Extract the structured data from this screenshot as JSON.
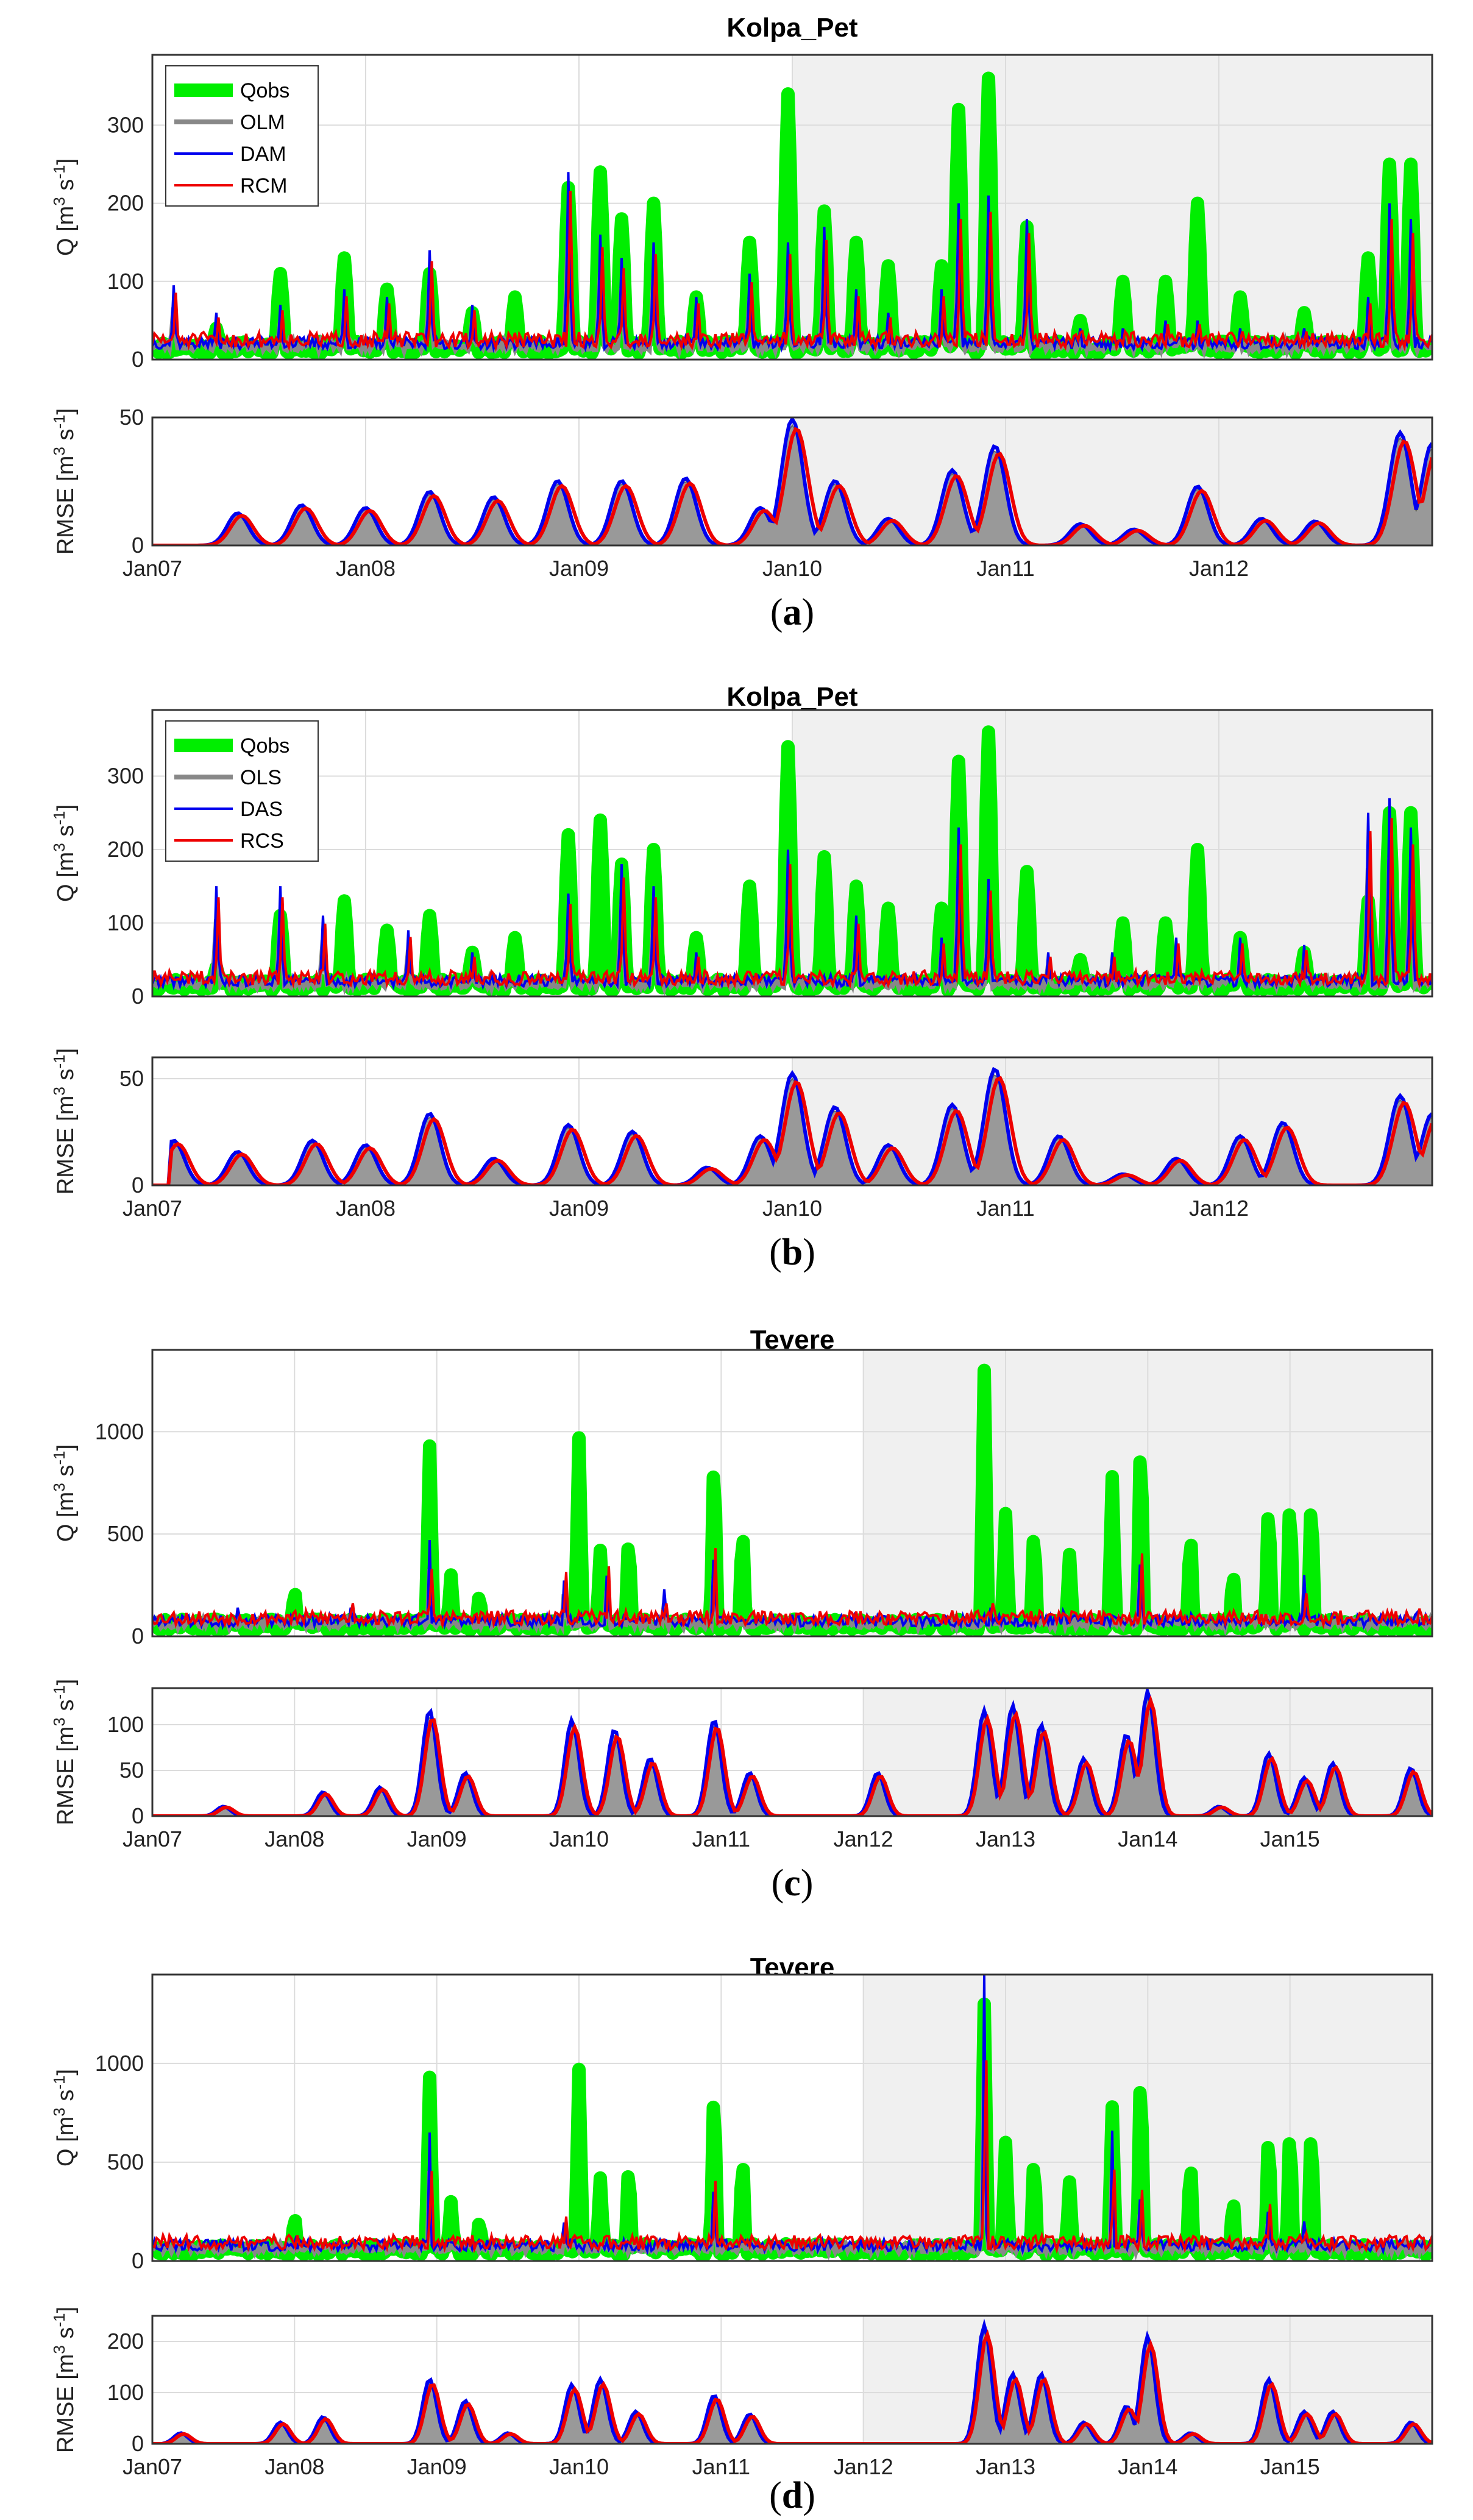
{
  "figure": {
    "xlabel_tick_prefix": "Jan",
    "colors": {
      "Qobs": "#00ee00",
      "OL": "#888888",
      "DA": "#0000ee",
      "RC": "#ee0000",
      "shade": "#f0f0f0",
      "rmse_fill": "#999999"
    }
  },
  "chart_data": [
    {
      "panel": "a",
      "title": "Kolpa_Pet",
      "type": "line",
      "x_ticks": [
        "Jan07",
        "Jan08",
        "Jan09",
        "Jan10",
        "Jan11",
        "Jan12"
      ],
      "x_range": [
        2007.0,
        2013.0
      ],
      "shaded_from": 2010.0,
      "q_ylabel": "Q [m3 s-1]",
      "q_ylim": [
        0,
        390
      ],
      "q_yticks": [
        0,
        100,
        200,
        300
      ],
      "rmse_ylabel": "RMSE [m3 s-1]",
      "rmse_ylim": [
        0,
        50
      ],
      "rmse_yticks": [
        0,
        50
      ],
      "legend": [
        "Qobs",
        "OLM",
        "DAM",
        "RCM"
      ],
      "q_peaks_obs": [
        [
          2007.3,
          40
        ],
        [
          2007.6,
          110
        ],
        [
          2007.9,
          130
        ],
        [
          2008.1,
          90
        ],
        [
          2008.3,
          110
        ],
        [
          2008.5,
          60
        ],
        [
          2008.7,
          80
        ],
        [
          2008.95,
          220
        ],
        [
          2009.1,
          240
        ],
        [
          2009.2,
          180
        ],
        [
          2009.35,
          200
        ],
        [
          2009.55,
          80
        ],
        [
          2009.8,
          150
        ],
        [
          2009.98,
          340
        ],
        [
          2010.15,
          190
        ],
        [
          2010.3,
          150
        ],
        [
          2010.45,
          120
        ],
        [
          2010.7,
          120
        ],
        [
          2010.78,
          320
        ],
        [
          2010.92,
          360
        ],
        [
          2011.1,
          170
        ],
        [
          2011.35,
          50
        ],
        [
          2011.55,
          100
        ],
        [
          2011.75,
          100
        ],
        [
          2011.9,
          200
        ],
        [
          2012.1,
          80
        ],
        [
          2012.4,
          60
        ],
        [
          2012.7,
          130
        ],
        [
          2012.8,
          250
        ],
        [
          2012.9,
          250
        ]
      ],
      "q_peaks_da": [
        [
          2007.1,
          95
        ],
        [
          2007.3,
          60
        ],
        [
          2007.6,
          70
        ],
        [
          2007.9,
          90
        ],
        [
          2008.1,
          80
        ],
        [
          2008.3,
          140
        ],
        [
          2008.5,
          70
        ],
        [
          2008.95,
          240
        ],
        [
          2009.1,
          160
        ],
        [
          2009.2,
          130
        ],
        [
          2009.35,
          150
        ],
        [
          2009.55,
          80
        ],
        [
          2009.8,
          110
        ],
        [
          2009.98,
          150
        ],
        [
          2010.15,
          170
        ],
        [
          2010.3,
          90
        ],
        [
          2010.45,
          60
        ],
        [
          2010.7,
          90
        ],
        [
          2010.78,
          200
        ],
        [
          2010.92,
          210
        ],
        [
          2011.1,
          180
        ],
        [
          2011.35,
          40
        ],
        [
          2011.55,
          40
        ],
        [
          2011.75,
          50
        ],
        [
          2011.9,
          50
        ],
        [
          2012.1,
          40
        ],
        [
          2012.4,
          40
        ],
        [
          2012.7,
          80
        ],
        [
          2012.8,
          200
        ],
        [
          2012.9,
          180
        ]
      ],
      "rmse_peaks": [
        [
          2007.4,
          12
        ],
        [
          2007.7,
          15
        ],
        [
          2008.0,
          14
        ],
        [
          2008.3,
          20
        ],
        [
          2008.6,
          18
        ],
        [
          2008.9,
          24
        ],
        [
          2009.2,
          24
        ],
        [
          2009.5,
          25
        ],
        [
          2009.85,
          14
        ],
        [
          2010.0,
          47
        ],
        [
          2010.2,
          24
        ],
        [
          2010.45,
          10
        ],
        [
          2010.75,
          28
        ],
        [
          2010.95,
          37
        ],
        [
          2011.35,
          8
        ],
        [
          2011.6,
          6
        ],
        [
          2011.9,
          22
        ],
        [
          2012.2,
          10
        ],
        [
          2012.45,
          9
        ],
        [
          2012.85,
          42
        ],
        [
          2013.0,
          38
        ]
      ]
    },
    {
      "panel": "b",
      "title": "Kolpa_Pet",
      "type": "line",
      "x_ticks": [
        "Jan07",
        "Jan08",
        "Jan09",
        "Jan10",
        "Jan11",
        "Jan12"
      ],
      "x_range": [
        2007.0,
        2013.0
      ],
      "shaded_from": 2010.0,
      "q_ylabel": "Q [m3 s-1]",
      "q_ylim": [
        0,
        390
      ],
      "q_yticks": [
        0,
        100,
        200,
        300
      ],
      "rmse_ylabel": "RMSE [m3 s-1]",
      "rmse_ylim": [
        0,
        60
      ],
      "rmse_yticks": [
        0,
        50
      ],
      "legend": [
        "Qobs",
        "OLS",
        "DAS",
        "RCS"
      ],
      "q_peaks_obs": [
        [
          2007.3,
          40
        ],
        [
          2007.6,
          110
        ],
        [
          2007.9,
          130
        ],
        [
          2008.1,
          90
        ],
        [
          2008.3,
          110
        ],
        [
          2008.5,
          60
        ],
        [
          2008.7,
          80
        ],
        [
          2008.95,
          220
        ],
        [
          2009.1,
          240
        ],
        [
          2009.2,
          180
        ],
        [
          2009.35,
          200
        ],
        [
          2009.55,
          80
        ],
        [
          2009.8,
          150
        ],
        [
          2009.98,
          340
        ],
        [
          2010.15,
          190
        ],
        [
          2010.3,
          150
        ],
        [
          2010.45,
          120
        ],
        [
          2010.7,
          120
        ],
        [
          2010.78,
          320
        ],
        [
          2010.92,
          360
        ],
        [
          2011.1,
          170
        ],
        [
          2011.35,
          50
        ],
        [
          2011.55,
          100
        ],
        [
          2011.75,
          100
        ],
        [
          2011.9,
          200
        ],
        [
          2012.1,
          80
        ],
        [
          2012.4,
          60
        ],
        [
          2012.7,
          130
        ],
        [
          2012.8,
          250
        ],
        [
          2012.9,
          250
        ]
      ],
      "q_peaks_da": [
        [
          2007.3,
          150
        ],
        [
          2007.6,
          150
        ],
        [
          2007.8,
          110
        ],
        [
          2008.2,
          90
        ],
        [
          2008.5,
          60
        ],
        [
          2008.95,
          140
        ],
        [
          2009.2,
          180
        ],
        [
          2009.35,
          150
        ],
        [
          2009.55,
          60
        ],
        [
          2009.98,
          200
        ],
        [
          2010.3,
          110
        ],
        [
          2010.7,
          80
        ],
        [
          2010.78,
          230
        ],
        [
          2010.92,
          160
        ],
        [
          2011.2,
          60
        ],
        [
          2011.5,
          60
        ],
        [
          2011.8,
          80
        ],
        [
          2012.1,
          80
        ],
        [
          2012.4,
          70
        ],
        [
          2012.7,
          250
        ],
        [
          2012.8,
          270
        ],
        [
          2012.9,
          230
        ]
      ],
      "rmse_peaks": [
        [
          2007.1,
          20
        ],
        [
          2007.4,
          15
        ],
        [
          2007.75,
          20
        ],
        [
          2008.0,
          18
        ],
        [
          2008.3,
          32
        ],
        [
          2008.6,
          12
        ],
        [
          2008.95,
          27
        ],
        [
          2009.25,
          24
        ],
        [
          2009.6,
          8
        ],
        [
          2009.85,
          22
        ],
        [
          2010.0,
          50
        ],
        [
          2010.2,
          35
        ],
        [
          2010.45,
          18
        ],
        [
          2010.75,
          36
        ],
        [
          2010.95,
          52
        ],
        [
          2011.25,
          22
        ],
        [
          2011.55,
          5
        ],
        [
          2011.8,
          12
        ],
        [
          2012.1,
          22
        ],
        [
          2012.3,
          28
        ],
        [
          2012.85,
          40
        ],
        [
          2013.0,
          32
        ]
      ]
    },
    {
      "panel": "c",
      "title": "Tevere",
      "type": "line",
      "x_ticks": [
        "Jan07",
        "Jan08",
        "Jan09",
        "Jan10",
        "Jan11",
        "Jan12",
        "Jan13",
        "Jan14",
        "Jan15"
      ],
      "x_range": [
        2007.0,
        2016.0
      ],
      "shaded_from": 2012.0,
      "q_ylabel": "Q [m3 s-1]",
      "q_ylim": [
        0,
        1400
      ],
      "q_yticks": [
        0,
        500,
        1000
      ],
      "rmse_ylabel": "RMSE [m3 s-1]",
      "rmse_ylim": [
        0,
        140
      ],
      "rmse_yticks": [
        0,
        50,
        100
      ],
      "legend": [],
      "q_peaks_obs": [
        [
          2008.0,
          220
        ],
        [
          2008.95,
          930
        ],
        [
          2009.1,
          300
        ],
        [
          2009.3,
          200
        ],
        [
          2010.0,
          970
        ],
        [
          2010.15,
          420
        ],
        [
          2010.35,
          460
        ],
        [
          2010.95,
          840
        ],
        [
          2011.15,
          500
        ],
        [
          2012.85,
          1300
        ],
        [
          2013.0,
          600
        ],
        [
          2013.2,
          500
        ],
        [
          2013.45,
          400
        ],
        [
          2013.75,
          780
        ],
        [
          2013.95,
          920
        ],
        [
          2014.3,
          480
        ],
        [
          2014.6,
          300
        ],
        [
          2014.85,
          620
        ],
        [
          2015.0,
          640
        ],
        [
          2015.15,
          640
        ]
      ],
      "q_peaks_da": [
        [
          2007.6,
          140
        ],
        [
          2008.4,
          180
        ],
        [
          2008.95,
          470
        ],
        [
          2009.9,
          350
        ],
        [
          2010.2,
          380
        ],
        [
          2010.6,
          230
        ],
        [
          2010.95,
          480
        ],
        [
          2012.1,
          100
        ],
        [
          2012.9,
          180
        ],
        [
          2013.4,
          160
        ],
        [
          2013.95,
          450
        ],
        [
          2014.3,
          140
        ],
        [
          2015.1,
          300
        ],
        [
          2015.9,
          150
        ]
      ],
      "rmse_peaks": [
        [
          2007.5,
          10
        ],
        [
          2008.2,
          25
        ],
        [
          2008.6,
          30
        ],
        [
          2008.95,
          110
        ],
        [
          2009.2,
          45
        ],
        [
          2009.95,
          100
        ],
        [
          2010.25,
          90
        ],
        [
          2010.5,
          60
        ],
        [
          2010.95,
          100
        ],
        [
          2011.2,
          45
        ],
        [
          2012.1,
          45
        ],
        [
          2012.85,
          110
        ],
        [
          2013.05,
          115
        ],
        [
          2013.25,
          95
        ],
        [
          2013.55,
          60
        ],
        [
          2013.85,
          85
        ],
        [
          2014.0,
          130
        ],
        [
          2014.5,
          10
        ],
        [
          2014.85,
          65
        ],
        [
          2015.1,
          40
        ],
        [
          2015.3,
          55
        ],
        [
          2015.85,
          50
        ]
      ]
    },
    {
      "panel": "d",
      "title": "Tevere",
      "type": "line",
      "x_ticks": [
        "Jan07",
        "Jan08",
        "Jan09",
        "Jan10",
        "Jan11",
        "Jan12",
        "Jan13",
        "Jan14",
        "Jan15"
      ],
      "x_range": [
        2007.0,
        2016.0
      ],
      "shaded_from": 2012.0,
      "q_ylabel": "Q [m3 s-1]",
      "q_ylim": [
        0,
        1450
      ],
      "q_yticks": [
        0,
        500,
        1000
      ],
      "rmse_ylabel": "RMSE [m3 s-1]",
      "rmse_ylim": [
        0,
        250
      ],
      "rmse_yticks": [
        0,
        100,
        200
      ],
      "legend": [],
      "q_peaks_obs": [
        [
          2008.0,
          220
        ],
        [
          2008.95,
          930
        ],
        [
          2009.1,
          300
        ],
        [
          2009.3,
          200
        ],
        [
          2010.0,
          970
        ],
        [
          2010.15,
          420
        ],
        [
          2010.35,
          460
        ],
        [
          2010.95,
          840
        ],
        [
          2011.15,
          500
        ],
        [
          2012.85,
          1300
        ],
        [
          2013.0,
          600
        ],
        [
          2013.2,
          500
        ],
        [
          2013.45,
          400
        ],
        [
          2013.75,
          780
        ],
        [
          2013.95,
          920
        ],
        [
          2014.3,
          480
        ],
        [
          2014.6,
          300
        ],
        [
          2014.85,
          620
        ],
        [
          2015.0,
          640
        ],
        [
          2015.15,
          640
        ]
      ],
      "q_peaks_da": [
        [
          2008.95,
          650
        ],
        [
          2009.9,
          250
        ],
        [
          2010.95,
          450
        ],
        [
          2012.85,
          1450
        ],
        [
          2013.75,
          660
        ],
        [
          2013.95,
          400
        ],
        [
          2014.85,
          320
        ],
        [
          2015.1,
          200
        ]
      ],
      "rmse_peaks": [
        [
          2007.2,
          20
        ],
        [
          2007.9,
          40
        ],
        [
          2008.2,
          50
        ],
        [
          2008.95,
          120
        ],
        [
          2009.2,
          80
        ],
        [
          2009.5,
          20
        ],
        [
          2009.95,
          110
        ],
        [
          2010.15,
          120
        ],
        [
          2010.4,
          60
        ],
        [
          2010.95,
          90
        ],
        [
          2011.2,
          55
        ],
        [
          2012.85,
          220
        ],
        [
          2013.05,
          130
        ],
        [
          2013.25,
          130
        ],
        [
          2013.55,
          40
        ],
        [
          2013.85,
          70
        ],
        [
          2014.0,
          200
        ],
        [
          2014.3,
          20
        ],
        [
          2014.85,
          120
        ],
        [
          2015.1,
          60
        ],
        [
          2015.3,
          60
        ],
        [
          2015.85,
          40
        ]
      ]
    }
  ]
}
